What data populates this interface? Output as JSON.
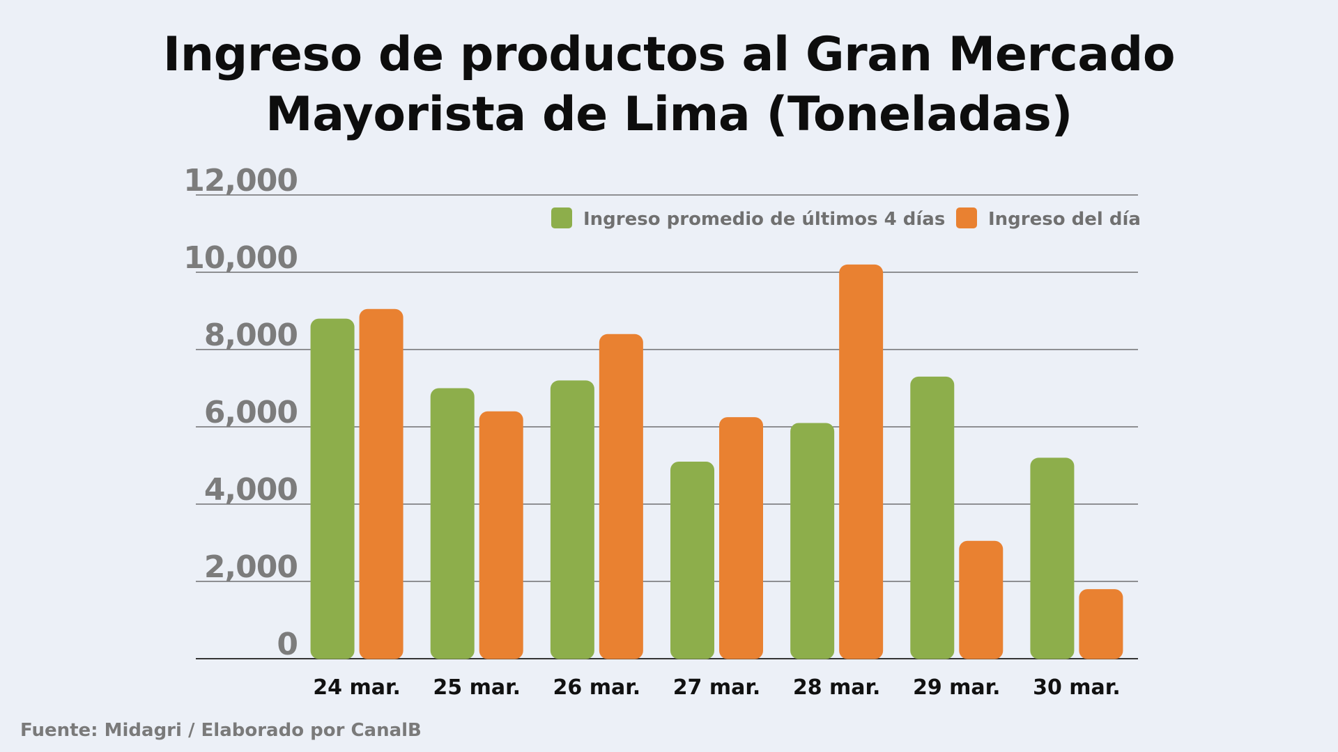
{
  "source": "Fuente: Midagri / Elaborado por CanalB",
  "chart_data": {
    "type": "bar",
    "title_lines": [
      "Ingreso de productos al Gran Mercado",
      "Mayorista de Lima (Toneladas)"
    ],
    "categories": [
      "24 mar.",
      "25 mar.",
      "26 mar.",
      "27 mar.",
      "28 mar.",
      "29 mar.",
      "30 mar."
    ],
    "series": [
      {
        "name": "Ingreso promedio de últimos 4 días",
        "color": "#8dae4b",
        "values": [
          8800,
          7000,
          7200,
          5100,
          6100,
          7300,
          5200
        ]
      },
      {
        "name": "Ingreso del día",
        "color": "#e98131",
        "values": [
          9050,
          6400,
          8400,
          6250,
          10200,
          3050,
          1800
        ]
      }
    ],
    "ylim": [
      0,
      12000
    ],
    "yticks": [
      "0",
      "2,000",
      "4,000",
      "6,000",
      "8,000",
      "10,000",
      "12,000"
    ],
    "grid": true,
    "legend_position": "top-right"
  }
}
